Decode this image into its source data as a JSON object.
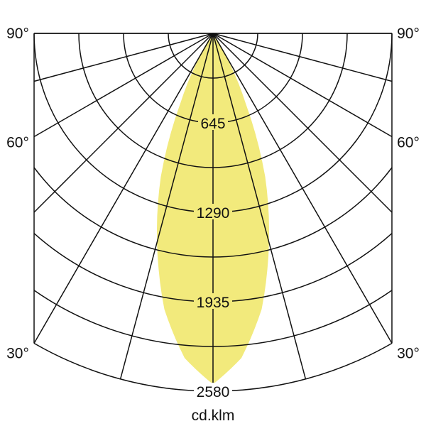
{
  "chart_data": {
    "type": "polar",
    "unit_label": "cd.klm",
    "radial_ticks": [
      645,
      1290,
      1935,
      2580
    ],
    "radial_max": 2580,
    "radial_minor_step": 322.5,
    "angle_step_deg": 15,
    "angle_labels": [
      {
        "angle": 90,
        "text": "90°"
      },
      {
        "angle": 60,
        "text": "60°"
      },
      {
        "angle": 30,
        "text": "30°"
      }
    ],
    "series": [
      {
        "fill_color": "#f2ea7c",
        "angles_deg": [
          0,
          5,
          10,
          15,
          20,
          25,
          30,
          35,
          40
        ],
        "values": [
          2530,
          2350,
          2020,
          1560,
          1100,
          560,
          180,
          40,
          0
        ],
        "symmetric": true
      }
    ],
    "grid": true
  }
}
